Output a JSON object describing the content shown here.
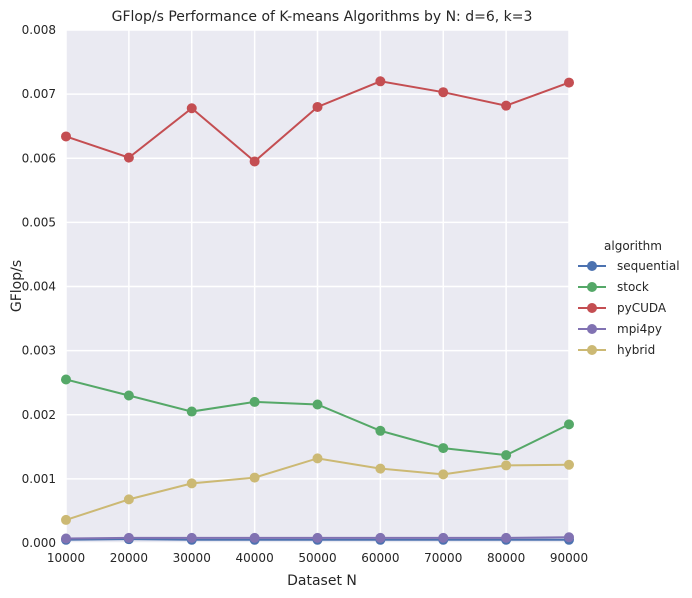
{
  "chart_data": {
    "type": "line",
    "title": "GFlop/s Performance of K-means Algorithms by N: d=6, k=3",
    "xlabel": "Dataset N",
    "ylabel": "GFlop/s",
    "x": [
      10000,
      20000,
      30000,
      40000,
      50000,
      60000,
      70000,
      80000,
      90000
    ],
    "x_tick_labels": [
      "10000",
      "20000",
      "30000",
      "40000",
      "50000",
      "60000",
      "70000",
      "80000",
      "90000"
    ],
    "ylim": [
      0,
      0.008
    ],
    "y_ticks": [
      0,
      0.001,
      0.002,
      0.003,
      0.004,
      0.005,
      0.006,
      0.007,
      0.008
    ],
    "y_tick_labels": [
      "0.000",
      "0.001",
      "0.002",
      "0.003",
      "0.004",
      "0.005",
      "0.006",
      "0.007",
      "0.008"
    ],
    "grid": true,
    "legend_title": "algorithm",
    "legend_position": "right",
    "series": [
      {
        "name": "sequential",
        "color": "#4c72b0",
        "values": [
          5e-05,
          6e-05,
          5e-05,
          5e-05,
          5e-05,
          5e-05,
          5e-05,
          5e-05,
          5e-05
        ]
      },
      {
        "name": "stock",
        "color": "#55a868",
        "values": [
          0.00255,
          0.0023,
          0.00205,
          0.0022,
          0.00216,
          0.00175,
          0.00148,
          0.00137,
          0.00185
        ]
      },
      {
        "name": "pyCUDA",
        "color": "#c44e52",
        "values": [
          0.00634,
          0.00601,
          0.00678,
          0.00595,
          0.0068,
          0.0072,
          0.00703,
          0.00682,
          0.00718
        ]
      },
      {
        "name": "mpi4py",
        "color": "#8172b2",
        "values": [
          7e-05,
          8e-05,
          8e-05,
          8e-05,
          8e-05,
          8e-05,
          8e-05,
          8e-05,
          9e-05
        ]
      },
      {
        "name": "hybrid",
        "color": "#ccb974",
        "values": [
          0.00036,
          0.00068,
          0.00093,
          0.00102,
          0.00132,
          0.00116,
          0.00107,
          0.00121,
          0.00122
        ]
      }
    ]
  }
}
